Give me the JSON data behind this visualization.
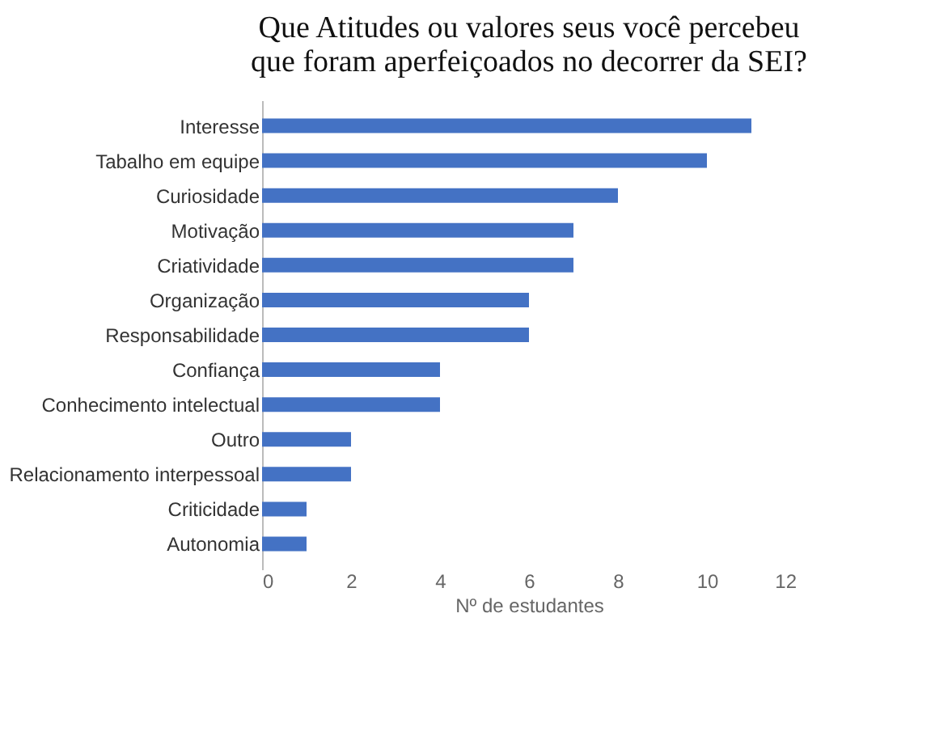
{
  "chart_data": {
    "type": "bar",
    "orientation": "horizontal",
    "title": [
      "Que Atitudes ou valores seus você percebeu",
      "que foram aperfeiçoados no decorrer da SEI?"
    ],
    "categories": [
      "Interesse",
      "Tabalho em equipe",
      "Curiosidade",
      "Motivação",
      "Criatividade",
      "Organização",
      "Responsabilidade",
      "Confiança",
      "Conhecimento intelectual",
      "Outro",
      "Relacionamento interpessoal",
      "Criticidade",
      "Autonomia"
    ],
    "values": [
      11,
      10,
      8,
      7,
      7,
      6,
      6,
      4,
      4,
      2,
      2,
      1,
      1
    ],
    "color": "#4472c4",
    "xlabel": "Nº de estudantes",
    "xlim": [
      0,
      12
    ],
    "xticks": [
      0,
      2,
      4,
      6,
      8,
      10,
      12
    ],
    "grid": false
  }
}
